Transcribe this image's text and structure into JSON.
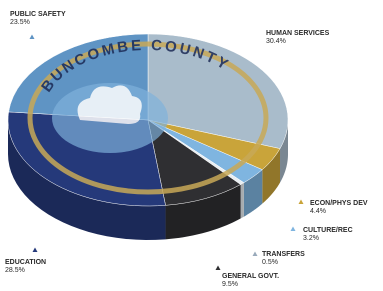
{
  "chart_data": {
    "type": "pie",
    "categories": [
      "HUMAN SERVICES",
      "ECON/PHYS DEV",
      "CULTURE/REC",
      "TRANSFERS",
      "GENERAL GOVT.",
      "EDUCATION",
      "PUBLIC SAFETY"
    ],
    "values": [
      30.4,
      4.4,
      3.2,
      0.5,
      9.5,
      28.5,
      23.5
    ],
    "value_labels": [
      "30.4%",
      "4.4%",
      "3.2%",
      "0.5%",
      "9.5%",
      "28.5%",
      "23.5%"
    ],
    "colors": [
      "#a9bccb",
      "#c9a43a",
      "#7fb5e0",
      "#e8eef2",
      "#2f2f32",
      "#25397a",
      "#5f94c4"
    ],
    "seal_text": "BUNCOMBE COUNTY"
  }
}
